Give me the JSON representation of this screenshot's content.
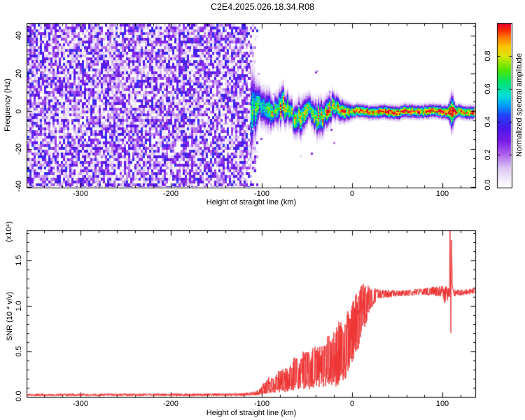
{
  "title": "C2E4.2025.026.18.34.R08",
  "chart_data": [
    {
      "type": "heatmap",
      "title": "",
      "xlabel": "Height of straight line (km)",
      "ylabel": "Frequency (Hz)",
      "xlim": [
        -360,
        137
      ],
      "ylim": [
        -40.5,
        46.5
      ],
      "xticks": [
        -300,
        -200,
        -100,
        0,
        100
      ],
      "xtick_labels": [
        "-300",
        "-200",
        "-100",
        "0",
        "100"
      ],
      "x_minor_step": 20,
      "yticks": [
        40,
        20,
        0,
        -20,
        -40
      ],
      "ytick_labels": [
        "40",
        "20",
        "0",
        "-20",
        "-40"
      ],
      "y_minor_step": 5,
      "grid": false,
      "colorbar": {
        "label": "Normalized spectral amplitude",
        "range": [
          0,
          1
        ],
        "tick_values": [
          0,
          0.2,
          0.4,
          0.6,
          0.8
        ],
        "tick_labels": [
          "0.0",
          "0.2",
          "0.4",
          "0.6",
          "0.8"
        ],
        "gradient": [
          [
            0.0,
            "#ffffff"
          ],
          [
            0.05,
            "#f3ecfb"
          ],
          [
            0.12,
            "#dcc6f5"
          ],
          [
            0.2,
            "#b066ee"
          ],
          [
            0.28,
            "#7d1fe8"
          ],
          [
            0.36,
            "#4b16e9"
          ],
          [
            0.44,
            "#2342fb"
          ],
          [
            0.5,
            "#009cff"
          ],
          [
            0.56,
            "#00dfd8"
          ],
          [
            0.64,
            "#00e272"
          ],
          [
            0.72,
            "#55e600"
          ],
          [
            0.8,
            "#d9e600"
          ],
          [
            0.86,
            "#ffc400"
          ],
          [
            0.92,
            "#ff6f00"
          ],
          [
            0.96,
            "#fb2500"
          ],
          [
            1.0,
            "#e50032"
          ]
        ]
      },
      "content": {
        "noise_field": {
          "km_range": [
            -360,
            -104
          ],
          "description": "broadband purple speckle noise filling full frequency range, ragged fading right edge near -110 km",
          "amplitude_range": [
            0.0,
            0.42
          ]
        },
        "signal_band": {
          "km_start": -112,
          "center_hz": 0,
          "wavy_until_km": -25,
          "half_width_hz_wavy": 11,
          "half_width_hz_tight": 4.6,
          "core_amplitude_wavy": 0.7,
          "core_amplitude_tight": 0.92,
          "hot_red_segment_km": [
            78,
            102
          ],
          "disturbance_km": [
            104,
            115
          ],
          "onset_plume_km": [
            -112,
            -104
          ]
        }
      }
    },
    {
      "type": "line",
      "series_color": "#ee3333",
      "xlabel": "Height of straight line (km)",
      "ylabel": "SNR (10 * v/v)",
      "ylabel_scale": "(x10⁴)",
      "xlim": [
        -360,
        137
      ],
      "ylim": [
        0,
        1.83
      ],
      "xticks": [
        -300,
        -200,
        -100,
        0,
        100
      ],
      "xtick_labels": [
        "-300",
        "-200",
        "-100",
        "0",
        "100"
      ],
      "x_minor_step": 20,
      "ytick_values": [
        0,
        0.5,
        1.0,
        1.5
      ],
      "ytick_labels": [
        "0.0",
        "0.5",
        "1.0",
        "1.5"
      ],
      "y_minor_step": 0.1,
      "grid": false,
      "envelope_keypoints": [
        [
          -360,
          0.008,
          0.035
        ],
        [
          -140,
          0.008,
          0.04
        ],
        [
          -115,
          0.01,
          0.05
        ],
        [
          -103,
          0.02,
          0.08
        ],
        [
          -97,
          0.03,
          0.17
        ],
        [
          -92,
          0.04,
          0.24
        ],
        [
          -87,
          0.04,
          0.2
        ],
        [
          -82,
          0.05,
          0.28
        ],
        [
          -76,
          0.05,
          0.33
        ],
        [
          -70,
          0.06,
          0.3
        ],
        [
          -64,
          0.07,
          0.45
        ],
        [
          -58,
          0.07,
          0.4
        ],
        [
          -52,
          0.08,
          0.55
        ],
        [
          -46,
          0.08,
          0.48
        ],
        [
          -40,
          0.1,
          0.62
        ],
        [
          -34,
          0.1,
          0.55
        ],
        [
          -28,
          0.12,
          0.72
        ],
        [
          -22,
          0.1,
          0.65
        ],
        [
          -16,
          0.12,
          0.85
        ],
        [
          -10,
          0.15,
          0.8
        ],
        [
          -5,
          0.2,
          0.95
        ],
        [
          -1,
          0.3,
          1.05
        ],
        [
          3,
          0.45,
          1.1
        ],
        [
          8,
          0.55,
          1.2
        ],
        [
          13,
          0.7,
          1.25
        ],
        [
          18,
          0.9,
          1.22
        ],
        [
          24,
          1.02,
          1.2
        ],
        [
          30,
          1.08,
          1.18
        ],
        [
          50,
          1.1,
          1.17
        ],
        [
          80,
          1.12,
          1.2
        ],
        [
          100,
          1.1,
          1.22
        ],
        [
          103,
          0.98,
          1.24
        ],
        [
          106,
          1.08,
          1.2
        ],
        [
          107.6,
          1.1,
          1.2
        ],
        [
          108.3,
          1.85,
          1.95
        ],
        [
          109.1,
          0.6,
          0.8
        ],
        [
          110,
          1.85,
          1.95
        ],
        [
          110.8,
          1.0,
          1.2
        ],
        [
          112,
          1.1,
          1.18
        ],
        [
          125,
          1.12,
          1.18
        ],
        [
          137,
          1.14,
          1.2
        ]
      ],
      "annotations": [
        "flat noise floor ~0.02 below -105 km",
        "noisy spiky rise between -100 km and +20 km",
        "plateau ~1.15 from +25 km to +135 km",
        "double off-scale spike with deep notch to ~0.62 near +109 km"
      ]
    }
  ]
}
